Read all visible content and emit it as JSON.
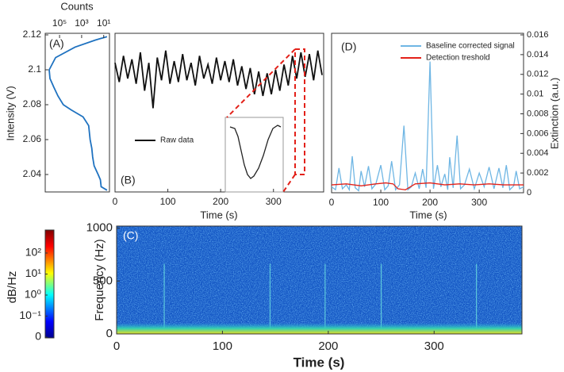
{
  "chart_data": [
    {
      "type": "line",
      "label": "(A)",
      "xlabel": "Counts",
      "ylabel": "Intensity (V)",
      "xscale": "log",
      "xaxis": "top",
      "xlim": [
        2000000,
        3
      ],
      "xticks": [
        {
          "value": 100000,
          "label": "10⁵"
        },
        {
          "value": 1000,
          "label": "10³"
        },
        {
          "value": 10,
          "label": "10¹"
        }
      ],
      "ylim": [
        2.03,
        2.12
      ],
      "yticks": [
        2.04,
        2.06,
        2.08,
        2.1,
        2.12
      ],
      "series": [
        {
          "color": "#1f72c0",
          "x": [
            5,
            60,
            4000,
            230000,
            870000,
            740000,
            330000,
            140000,
            46000,
            8700,
            740,
            230,
            170,
            120,
            100,
            74,
            32,
            20,
            17,
            5
          ],
          "values": [
            2.119,
            2.117,
            2.113,
            2.107,
            2.1,
            2.095,
            2.09,
            2.085,
            2.08,
            2.077,
            2.073,
            2.068,
            2.06,
            2.055,
            2.05,
            2.045,
            2.04,
            2.037,
            2.033,
            2.031
          ]
        }
      ]
    },
    {
      "type": "line",
      "label": "(B)",
      "xlabel": "Time (s)",
      "xlim": [
        0,
        395
      ],
      "xticks": [
        0,
        100,
        200,
        300
      ],
      "ylim": [
        2.03,
        2.12
      ],
      "series": [
        {
          "name": "Raw data",
          "color": "#111111",
          "x": [
            0,
            8,
            16,
            24,
            32,
            40,
            48,
            56,
            64,
            72,
            80,
            88,
            96,
            104,
            112,
            120,
            128,
            136,
            144,
            152,
            160,
            168,
            176,
            184,
            192,
            200,
            208,
            216,
            224,
            232,
            240,
            248,
            256,
            264,
            272,
            280,
            288,
            296,
            304,
            312,
            320,
            328,
            336,
            344,
            352,
            360,
            368,
            376,
            384,
            392
          ],
          "values": [
            2.104,
            2.093,
            2.108,
            2.095,
            2.106,
            2.092,
            2.11,
            2.088,
            2.104,
            2.078,
            2.107,
            2.094,
            2.111,
            2.092,
            2.105,
            2.093,
            2.109,
            2.094,
            2.104,
            2.091,
            2.108,
            2.095,
            2.103,
            2.092,
            2.107,
            2.094,
            2.105,
            2.093,
            2.106,
            2.091,
            2.102,
            2.089,
            2.101,
            2.086,
            2.099,
            2.085,
            2.098,
            2.086,
            2.1,
            2.088,
            2.103,
            2.091,
            2.108,
            2.095,
            2.11,
            2.096,
            2.109,
            2.094,
            2.111,
            2.097
          ]
        }
      ]
    },
    {
      "type": "spectrogram",
      "label": "(C)",
      "xlabel": "Time (s)",
      "ylabel": "Frequency (Hz)",
      "xlim": [
        0,
        383
      ],
      "xticks": [
        0,
        100,
        200,
        300
      ],
      "ylim": [
        0,
        1020
      ],
      "yticks": [
        0,
        500,
        1000
      ],
      "events": [
        45,
        145,
        197,
        250,
        340
      ],
      "colorbar": {
        "label": "dB/Hz",
        "ticks": [
          0,
          {
            "value": 0.1,
            "label": "10⁻¹"
          },
          {
            "value": 1,
            "label": "10⁰"
          },
          {
            "value": 10,
            "label": "10¹"
          },
          {
            "value": 100,
            "label": "10²"
          }
        ]
      }
    },
    {
      "type": "line",
      "label": "(D)",
      "xlabel": "Time (s)",
      "y2label": "Extinction (a.u.)",
      "xlim": [
        0,
        390
      ],
      "xticks": [
        0,
        100,
        200,
        300
      ],
      "y2lim": [
        0,
        0.016
      ],
      "y2ticks": [
        0,
        0.002,
        0.004,
        0.006,
        0.008,
        0.01,
        0.012,
        0.014,
        0.016
      ],
      "series": [
        {
          "name": "Baseline corrected signal",
          "color": "#6fb6e4",
          "axis": "y2",
          "x": [
            0,
            8,
            15,
            22,
            30,
            36,
            42,
            48,
            55,
            60,
            67,
            75,
            82,
            90,
            100,
            108,
            115,
            122,
            130,
            138,
            147,
            155,
            162,
            170,
            178,
            185,
            192,
            200,
            207,
            215,
            222,
            230,
            236,
            240,
            247,
            255,
            262,
            270,
            280,
            290,
            300,
            310,
            320,
            330,
            340,
            348,
            355,
            362,
            370,
            375,
            382,
            390
          ],
          "values": [
            0.0006,
            0.0003,
            0.0025,
            0.0004,
            0.0008,
            0.0003,
            0.0037,
            0.0005,
            0.0002,
            0.0022,
            0.0006,
            0.0027,
            0.0004,
            0.0009,
            0.0028,
            0.0003,
            0.0007,
            0.0032,
            0.0003,
            0.0008,
            0.0068,
            0.0003,
            0.0006,
            0.002,
            0.0004,
            0.0024,
            0.0005,
            0.0133,
            0.0004,
            0.0028,
            0.0006,
            0.0019,
            0.0003,
            0.0036,
            0.0005,
            0.0058,
            0.0004,
            0.0008,
            0.0024,
            0.0004,
            0.002,
            0.0006,
            0.0026,
            0.0004,
            0.0025,
            0.0005,
            0.0028,
            0.0003,
            0.0007,
            0.0022,
            0.0004,
            0.0006
          ]
        },
        {
          "name": "Detection treshold",
          "color": "#e32119",
          "axis": "y2",
          "x": [
            0,
            30,
            60,
            90,
            110,
            125,
            135,
            150,
            170,
            200,
            230,
            260,
            290,
            320,
            350,
            390
          ],
          "values": [
            0.0008,
            0.0009,
            0.0007,
            0.0009,
            0.001,
            0.0009,
            0.0004,
            0.0003,
            0.0009,
            0.001,
            0.0008,
            0.0009,
            0.0008,
            0.0009,
            0.0008,
            0.0008
          ]
        }
      ]
    }
  ]
}
